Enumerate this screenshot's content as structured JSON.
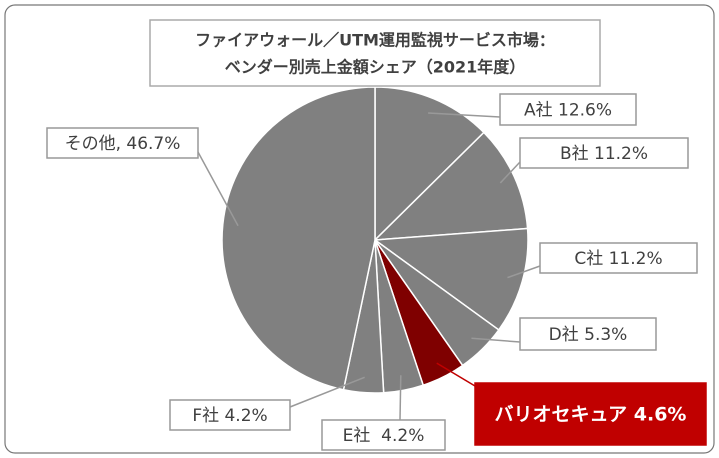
{
  "chart_data": {
    "type": "pie",
    "title": [
      "ファイアウォール／UTM運用監視サービス市場：",
      "ベンダー別売上金額シェア（2021年度）"
    ],
    "labels": [
      "A社 12.6%",
      "B社 11.2%",
      "C社 11.2%",
      "D社 5.3%",
      "バリオセキュア 4.6%",
      "E社  4.2%",
      "F社 4.2%",
      "その他, 46.7%"
    ],
    "values": [
      12.6,
      11.2,
      11.2,
      5.3,
      4.6,
      4.2,
      4.2,
      46.7
    ],
    "colors": [
      "#808080",
      "#808080",
      "#808080",
      "#808080",
      "#7f0000",
      "#808080",
      "#808080",
      "#808080"
    ],
    "highlight": 4
  }
}
